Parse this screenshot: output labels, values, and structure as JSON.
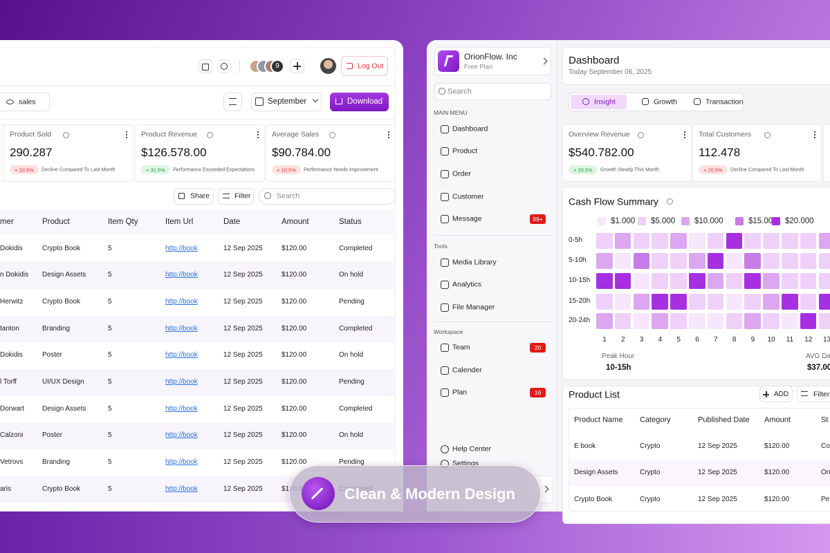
{
  "left_panel": {
    "header": {
      "avatar_count": "9",
      "logout": "Log Out"
    },
    "toolbar": {
      "view": "sales",
      "month": "September",
      "download": "Download"
    },
    "stats": [
      {
        "label": "Product Sold",
        "value": "290.287",
        "change": "+ 20.5%",
        "note": "Decline Compared To Last Month",
        "tone": "red"
      },
      {
        "label": "Product Revenue",
        "value": "$126.578.00",
        "change": "+ 31.5%",
        "note": "Performance Exceeded Expectations",
        "tone": "green"
      },
      {
        "label": "Average Sales",
        "value": "$90.784.00",
        "change": "+ 10.5%",
        "note": "Performance Needs Improvement",
        "tone": "red"
      }
    ],
    "table_actions": {
      "share": "Share",
      "filter": "Filter",
      "search": "Search"
    },
    "table": {
      "columns": [
        "mer",
        "Product",
        "Item Qty",
        "Item Url",
        "Date",
        "Amount",
        "Status"
      ],
      "rows": [
        [
          "Dokidis",
          "Crypto Book",
          "5",
          "http://book",
          "12 Sep 2025",
          "$120.00",
          "Completed"
        ],
        [
          "n Dokidis",
          "Design Assets",
          "5",
          "http://book",
          "12 Sep 2025",
          "$120.00",
          "On hold"
        ],
        [
          "Herwitz",
          "Crypto Book",
          "5",
          "http://book",
          "12 Sep 2025",
          "$120.00",
          "Pending"
        ],
        [
          "tanton",
          "Branding",
          "5",
          "http://book",
          "12 Sep 2025",
          "$120.00",
          "Completed"
        ],
        [
          "Dokidis",
          "Poster",
          "5",
          "http://book",
          "12 Sep 2025",
          "$120.00",
          "On hold"
        ],
        [
          "l Torff",
          "UI/UX Design",
          "5",
          "http://book",
          "12 Sep 2025",
          "$120.00",
          "Pending"
        ],
        [
          "Dorwart",
          "Design Assets",
          "5",
          "http://book",
          "12 Sep 2025",
          "$120.00",
          "Completed"
        ],
        [
          "Calzoni",
          "Poster",
          "5",
          "http://book",
          "12 Sep 2025",
          "$120.00",
          "On hold"
        ],
        [
          "Vetrovs",
          "Branding",
          "5",
          "http://book",
          "12 Sep 2025",
          "$120.00",
          "Pending"
        ],
        [
          "aris",
          "Crypto Book",
          "5",
          "http://book",
          "12 Sep 2025",
          "$120.00",
          "Completed"
        ]
      ]
    }
  },
  "right_panel": {
    "sidebar": {
      "brand": "OrionFlow. Inc",
      "plan": "Free Plan",
      "search": "Search",
      "sections": [
        {
          "title": "MAIN MENU",
          "items": [
            {
              "label": "Dashboard"
            },
            {
              "label": "Product"
            },
            {
              "label": "Order"
            },
            {
              "label": "Customer"
            },
            {
              "label": "Message",
              "badge": "99+"
            }
          ]
        },
        {
          "title": "Tools",
          "items": [
            {
              "label": "Media Library"
            },
            {
              "label": "Analytics"
            },
            {
              "label": "File Manager"
            }
          ]
        },
        {
          "title": "Workspace",
          "items": [
            {
              "label": "Team",
              "badge": "20"
            },
            {
              "label": "Calender"
            },
            {
              "label": "Plan",
              "badge": "16"
            }
          ]
        }
      ],
      "footer": [
        "Help Center",
        "Settings"
      ]
    },
    "header": {
      "title": "Dashboard",
      "date": "Today September 06, 2025"
    },
    "tabs": [
      "Insight",
      "Growth",
      "Transaction"
    ],
    "stats": [
      {
        "label": "Overview Revenue",
        "value": "$540.782.00",
        "change": "+ 20.5%",
        "note": "Growth Steady This Month",
        "tone": "green"
      },
      {
        "label": "Total Customers",
        "value": "112.478",
        "change": "+ 20.5%",
        "note": "Decline Compared To Last Month",
        "tone": "red"
      }
    ],
    "heatmap": {
      "title": "Cash Flow Summary",
      "legend": [
        {
          "value": 1000,
          "label": "$1.000",
          "color": "#f7e6fd"
        },
        {
          "value": 5000,
          "label": "$5.000",
          "color": "#eed0f9"
        },
        {
          "value": 10000,
          "label": "$10.000",
          "color": "#dca6f0"
        },
        {
          "value": 15000,
          "label": "$15.000",
          "color": "#c77ce7"
        },
        {
          "value": 20000,
          "label": "$20.000",
          "color": "#a72fe2"
        }
      ],
      "rows": [
        "0-5h",
        "5-10h",
        "10-15h",
        "15-20h",
        "20-24h"
      ],
      "columns": [
        1,
        2,
        3,
        4,
        5,
        6,
        7,
        8,
        9,
        10,
        11,
        12,
        13
      ],
      "values": [
        [
          5000,
          10000,
          5000,
          5000,
          10000,
          1000,
          5000,
          20000,
          5000,
          5000,
          5000,
          5000,
          10000
        ],
        [
          10000,
          1000,
          15000,
          5000,
          5000,
          10000,
          20000,
          1000,
          15000,
          5000,
          5000,
          5000,
          5000
        ],
        [
          20000,
          20000,
          1000,
          5000,
          5000,
          20000,
          10000,
          5000,
          20000,
          10000,
          5000,
          5000,
          5000
        ],
        [
          5000,
          1000,
          10000,
          20000,
          20000,
          5000,
          5000,
          1000,
          5000,
          10000,
          20000,
          5000,
          20000
        ],
        [
          10000,
          5000,
          1000,
          10000,
          5000,
          1000,
          1000,
          5000,
          10000,
          5000,
          1000,
          20000,
          5000
        ]
      ],
      "peak_label": "Peak Hour",
      "peak_value": "10-15h",
      "avg_label": "AVG Da",
      "avg_value": "$37.00"
    },
    "product_list": {
      "title": "Product List",
      "add": "ADD",
      "filter": "Filter",
      "columns": [
        "Product Name",
        "Category",
        "Published Date",
        "Amount",
        "St"
      ],
      "rows": [
        [
          "E book",
          "Crypto",
          "12 Sep 2025",
          "$120.00",
          "Co"
        ],
        [
          "Design Assets",
          "Crypto",
          "12 Sep 2025",
          "$120.00",
          "On"
        ],
        [
          "Crypto Book",
          "Crypto",
          "12 Sep 2025",
          "$120.00",
          "Pe"
        ]
      ]
    }
  },
  "badge": "Clean & Modern Design"
}
